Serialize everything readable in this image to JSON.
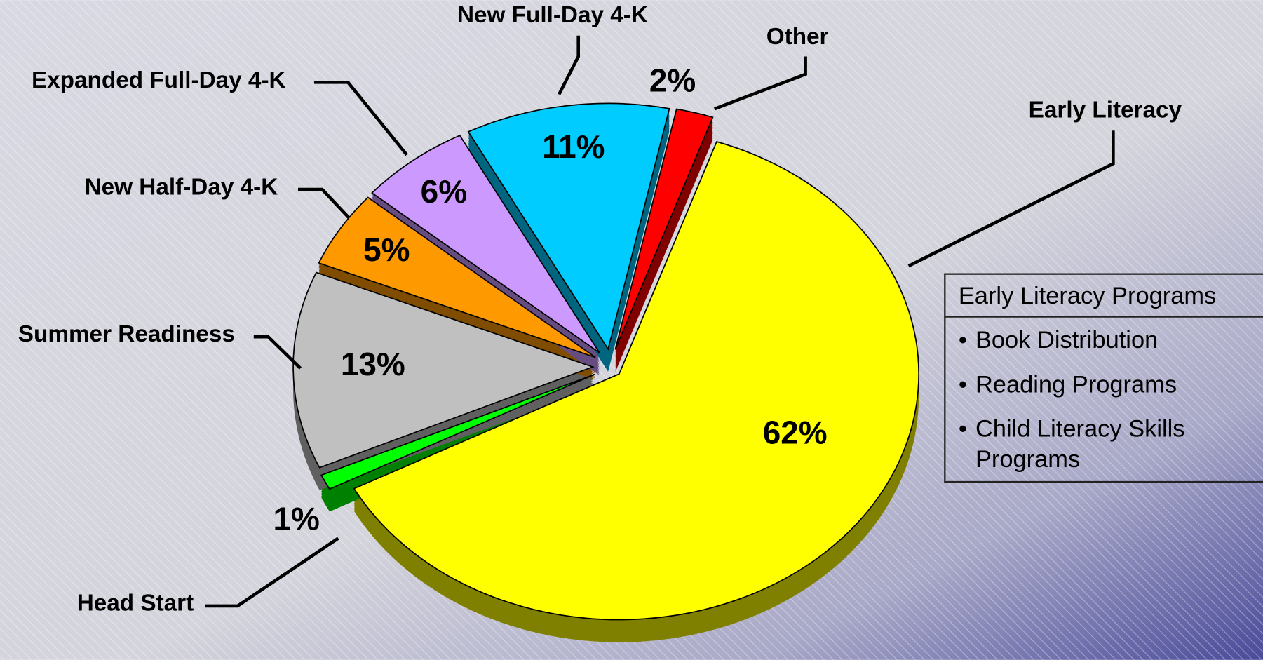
{
  "chart_data": {
    "type": "pie",
    "categories": [
      "Early Literacy",
      "Head Start",
      "Summer Readiness",
      "New Half-Day 4-K",
      "Expanded Full-Day 4-K",
      "New Full-Day 4-K",
      "Other"
    ],
    "values": [
      62,
      1,
      13,
      5,
      6,
      11,
      2
    ],
    "value_labels": [
      "62%",
      "1%",
      "13%",
      "5%",
      "6%",
      "11%",
      "2%"
    ],
    "colors": [
      "#ffff00",
      "#00ff00",
      "#c0c0c0",
      "#ff9900",
      "#cc99ff",
      "#00ccff",
      "#ff0000"
    ]
  },
  "callout": {
    "title": "Early Literacy Programs",
    "items": [
      "Book Distribution",
      "Reading Programs",
      "Child Literacy Skills Programs"
    ]
  }
}
